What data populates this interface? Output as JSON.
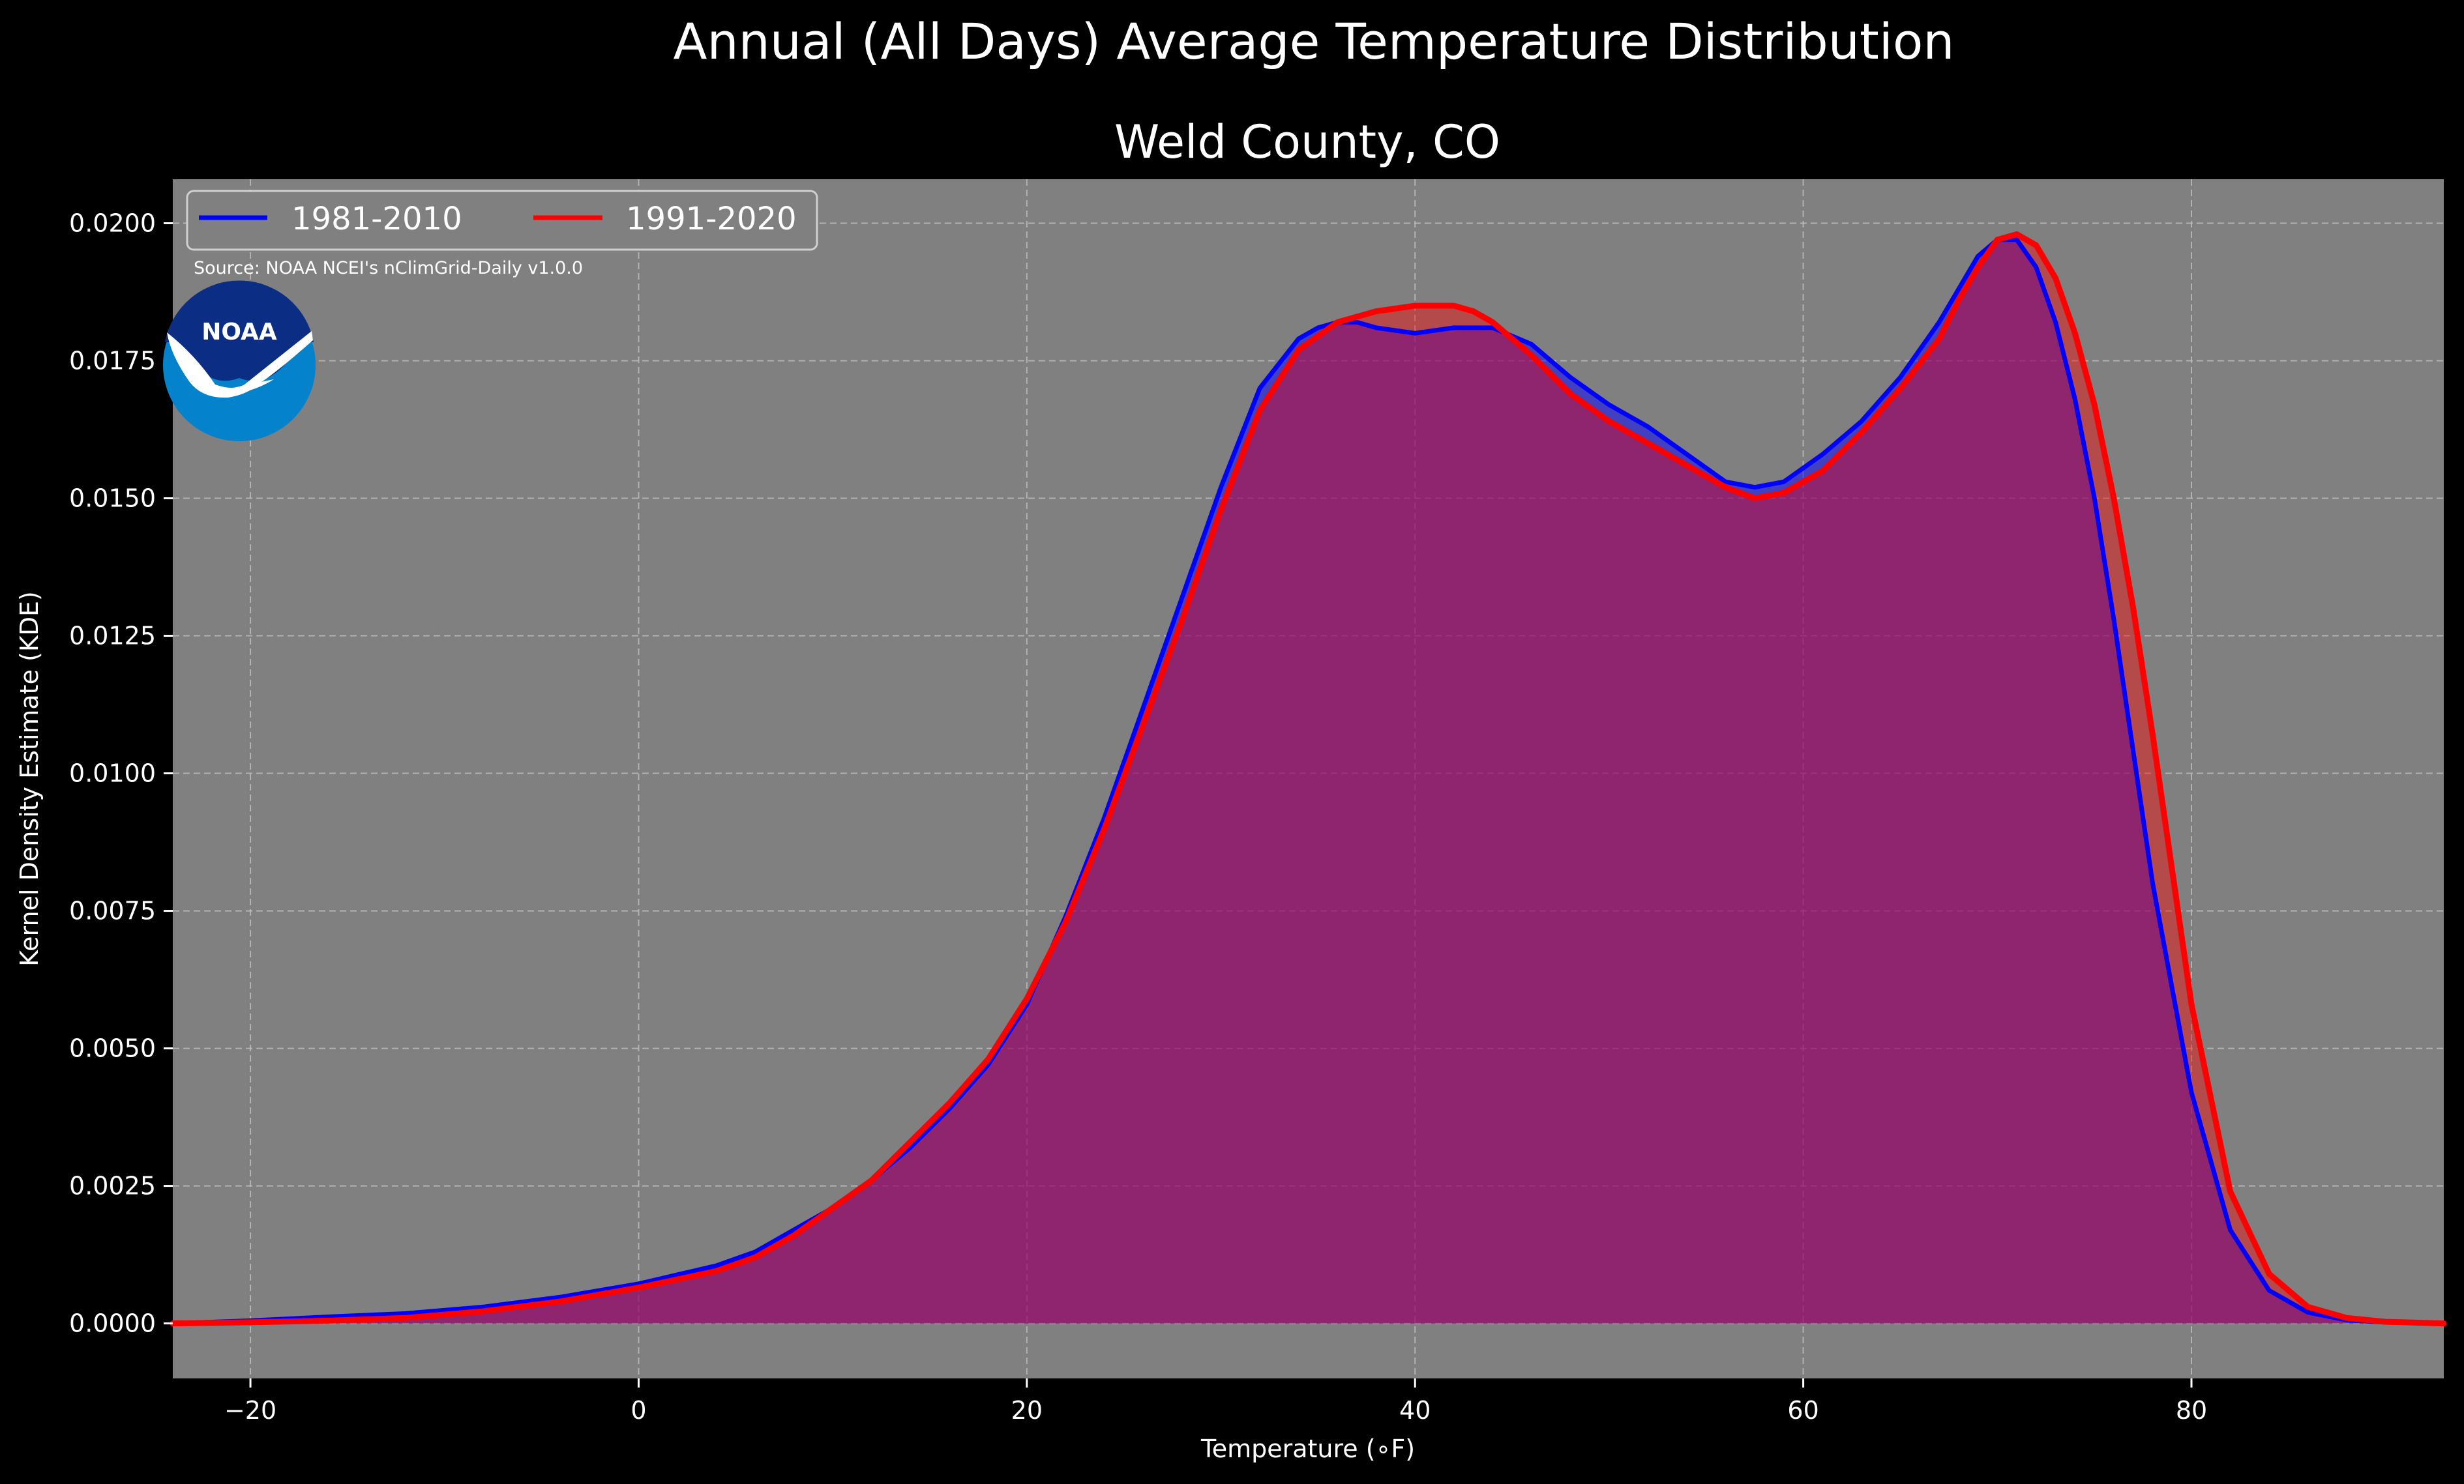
{
  "chart_data": {
    "type": "area",
    "suptitle": "Annual (All Days) Average Temperature Distribution",
    "title": "Weld County, CO",
    "xlabel": "Temperature (∘F)",
    "ylabel": "Kernel Density Estimate (KDE)",
    "source": "Source: NOAA NCEI's nClimGrid-Daily v1.0.0",
    "logo_text": "NOAA",
    "xlim": [
      -24,
      93
    ],
    "ylim": [
      -0.001,
      0.0208
    ],
    "xticks": [
      -20,
      0,
      20,
      40,
      60,
      80
    ],
    "xtick_labels": [
      "−20",
      "0",
      "20",
      "40",
      "60",
      "80"
    ],
    "yticks": [
      0,
      0.0025,
      0.005,
      0.0075,
      0.01,
      0.0125,
      0.015,
      0.0175,
      0.02
    ],
    "ytick_labels": [
      "0.0000",
      "0.0025",
      "0.0050",
      "0.0075",
      "0.0100",
      "0.0125",
      "0.0150",
      "0.0175",
      "0.0200"
    ],
    "grid": true,
    "legend_position": "top-left",
    "colors": {
      "background": "#000000",
      "plot_background": "#808080",
      "grid": "#bfbfbf",
      "text": "#ffffff",
      "fill": "#9e1e5c",
      "logo_outer": "#0483cc",
      "logo_inner": "#0b2d83"
    },
    "series": [
      {
        "name": "1981-2010",
        "color": "#0000ff",
        "x": [
          -24,
          -20,
          -16,
          -12,
          -8,
          -4,
          0,
          4,
          6,
          8,
          10,
          12,
          14,
          16,
          18,
          20,
          22,
          24,
          26,
          28,
          30,
          32,
          34,
          35,
          36,
          37,
          38,
          40,
          42,
          44,
          46,
          48,
          50,
          52,
          54,
          56,
          57.5,
          59,
          61,
          63,
          65,
          67,
          68,
          69,
          70,
          71,
          72,
          73,
          74,
          75,
          76,
          77,
          78,
          80,
          82,
          84,
          86,
          88,
          90,
          93
        ],
        "y": [
          0.0,
          5e-05,
          0.00012,
          0.00018,
          0.0003,
          0.00048,
          0.00072,
          0.00105,
          0.0013,
          0.0017,
          0.0021,
          0.0026,
          0.0032,
          0.0039,
          0.0047,
          0.0058,
          0.0074,
          0.0092,
          0.0112,
          0.0132,
          0.0152,
          0.017,
          0.0179,
          0.0181,
          0.0182,
          0.0182,
          0.0181,
          0.018,
          0.0181,
          0.0181,
          0.0178,
          0.0172,
          0.0167,
          0.0163,
          0.0158,
          0.0153,
          0.0152,
          0.0153,
          0.0158,
          0.0164,
          0.0172,
          0.0182,
          0.0188,
          0.0194,
          0.0197,
          0.0197,
          0.0192,
          0.0182,
          0.0168,
          0.015,
          0.0128,
          0.0104,
          0.008,
          0.0042,
          0.0017,
          0.0006,
          0.0002,
          6e-05,
          2e-05,
          0.0
        ]
      },
      {
        "name": "1991-2020",
        "color": "#ff0000",
        "x": [
          -24,
          -20,
          -16,
          -12,
          -8,
          -4,
          0,
          4,
          6,
          8,
          10,
          12,
          14,
          16,
          18,
          20,
          22,
          24,
          26,
          28,
          30,
          32,
          34,
          36,
          38,
          40,
          41,
          42,
          43,
          44,
          46,
          48,
          50,
          52,
          54,
          56,
          57.5,
          59,
          61,
          63,
          65,
          67,
          68,
          69,
          70,
          71,
          72,
          73,
          74,
          75,
          76,
          77,
          78,
          80,
          82,
          84,
          86,
          88,
          90,
          93
        ],
        "y": [
          0.0,
          2e-05,
          5e-05,
          0.0001,
          0.00022,
          0.0004,
          0.00065,
          0.00095,
          0.0012,
          0.0016,
          0.0021,
          0.0026,
          0.0033,
          0.004,
          0.0048,
          0.0059,
          0.0073,
          0.009,
          0.0109,
          0.0128,
          0.0148,
          0.0166,
          0.0177,
          0.0182,
          0.0184,
          0.0185,
          0.0185,
          0.0185,
          0.0184,
          0.0182,
          0.0176,
          0.0169,
          0.0164,
          0.016,
          0.0156,
          0.0152,
          0.015,
          0.0151,
          0.0155,
          0.0162,
          0.017,
          0.0179,
          0.0186,
          0.0192,
          0.0197,
          0.0198,
          0.0196,
          0.019,
          0.018,
          0.0167,
          0.015,
          0.013,
          0.0107,
          0.0058,
          0.0024,
          0.0009,
          0.0003,
          0.0001,
          3e-05,
          0.0
        ]
      }
    ]
  }
}
